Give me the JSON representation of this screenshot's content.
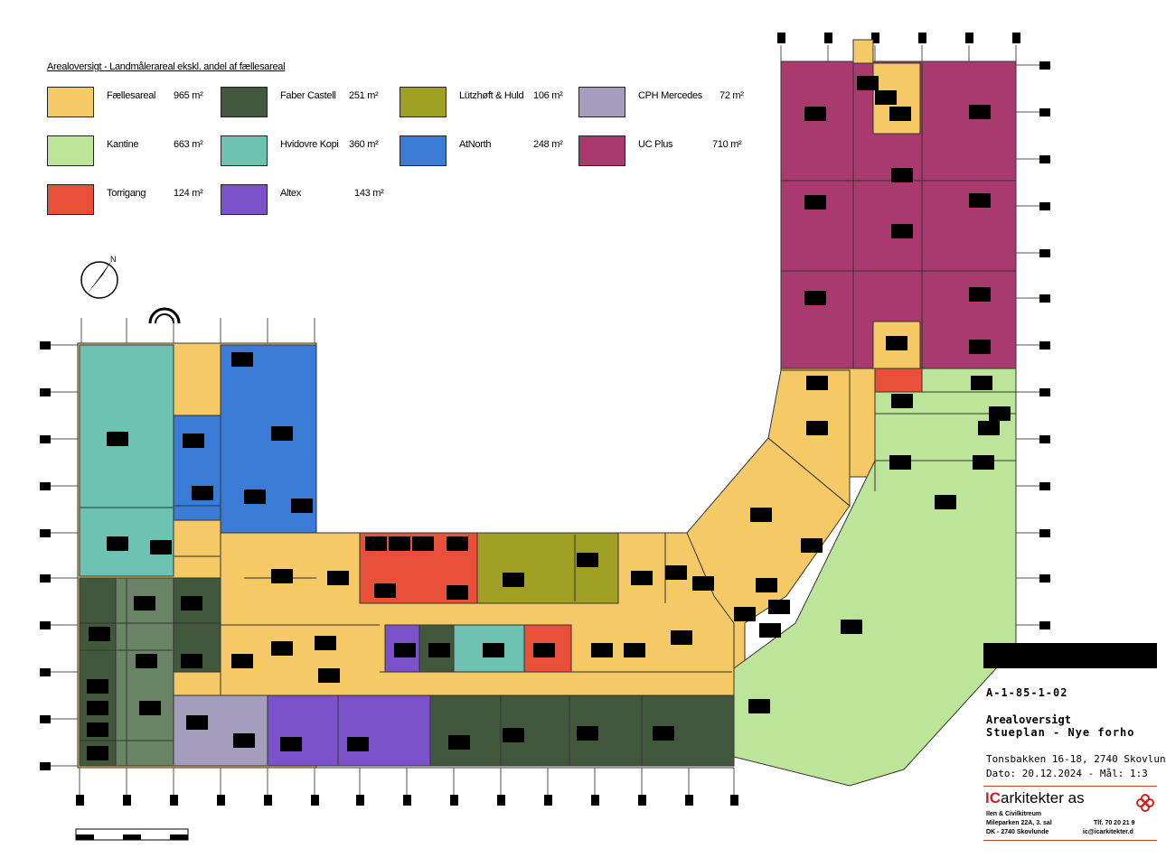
{
  "legend": {
    "title": "Arealoversigt - Landmålerareal ekskl. andel af fællesareal",
    "items": [
      {
        "label": "Fællesareal",
        "value": "965 m²",
        "color": "#f5c965"
      },
      {
        "label": "Kantine",
        "value": "663 m²",
        "color": "#bde59a"
      },
      {
        "label": "Torrigang",
        "value": "124 m²",
        "color": "#e8503a"
      },
      {
        "label": "Faber Castell",
        "value": "251 m²",
        "color": "#41583c"
      },
      {
        "label": "Hvidovre Kopi",
        "value": "360 m²",
        "color": "#6ec2b2"
      },
      {
        "label": "Altex",
        "value": "143 m²",
        "color": "#7b52c9"
      },
      {
        "label": "Lützhøft & Huld",
        "value": "106 m²",
        "color": "#a0a025"
      },
      {
        "label": "AtNorth",
        "value": "248 m²",
        "color": "#3a7bd5"
      },
      {
        "label": "CPH Mercedes",
        "value": "72 m²",
        "color": "#a59dbd"
      },
      {
        "label": "UC Plus",
        "value": "710 m²",
        "color": "#a83a6e"
      }
    ]
  },
  "colors": {
    "faelles": "#f5c965",
    "kantine": "#bde59a",
    "torrigang": "#e8503a",
    "faber": "#41583c",
    "faber_light": "#6a8566",
    "hvidovre": "#6ec2b2",
    "altex": "#7b52c9",
    "lutzhoft": "#a0a025",
    "atnorth": "#3a7bd5",
    "cph": "#a59dbd",
    "ucplus": "#a83a6e"
  },
  "north_symbol": "N",
  "titleblock": {
    "code": "A-1-85-1-02",
    "title1": "Arealoversigt",
    "title2": "Stueplan - Nye forho",
    "address": "Tonsbakken 16-18, 2740 Skovlun",
    "date": "Dato: 20.12.2024 - Mål: 1:3",
    "firm_ic": "IC",
    "firm_rest": "arkitekter as",
    "firm_sub": "Ilen & Civilkitreum",
    "firm_address": "Mileparken 22A, 3. sal",
    "firm_city": "DK - 2740 Skovlunde",
    "firm_tel": "Tlf.  70 20 21 9",
    "firm_mail": "ic@icarkitekter.d"
  }
}
